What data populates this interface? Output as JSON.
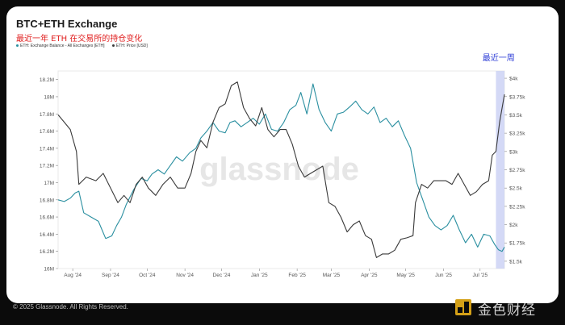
{
  "title": "BTC+ETH Exchange",
  "subtitle": "最近一年 ETH 在交易所的持仓变化",
  "legend": [
    {
      "label": "ETH: Exchange Balance - All Exchanges [ETH]",
      "color": "#2a8fa0"
    },
    {
      "label": "ETH: Price [USD]",
      "color": "#3a3a3a"
    }
  ],
  "highlight_label": "最近一周",
  "watermark": "glassnode",
  "footer": "© 2025 Glassnode. All Rights Reserved.",
  "brand": "金色财经",
  "colors": {
    "balance": "#2a8fa0",
    "price": "#3a3a3a",
    "highlight": "#cdd2f4",
    "highlight_text": "#2b3bd6"
  },
  "chart_data": {
    "type": "line",
    "title": "BTC+ETH Exchange",
    "grid": true,
    "legend_position": "top-left",
    "x_labels": [
      "Aug '24",
      "Sep '24",
      "Oct '24",
      "Nov '24",
      "Dec '24",
      "Jan '25",
      "Feb '25",
      "Mar '25",
      "Apr '25",
      "May '25",
      "Jun '25",
      "Jul '25"
    ],
    "y_left_ticks": [
      "16M",
      "16.2M",
      "16.4M",
      "16.6M",
      "16.8M",
      "17M",
      "17.2M",
      "17.4M",
      "17.6M",
      "17.8M",
      "18M",
      "18.2M"
    ],
    "y_left_lim": [
      16.0,
      18.3
    ],
    "y_right_ticks": [
      "$1.5k",
      "$1.75k",
      "$2k",
      "$2.25k",
      "$2.5k",
      "$2.75k",
      "$3k",
      "$3.25k",
      "$3.5k",
      "$3.75k",
      "$4k"
    ],
    "y_right_lim": [
      1.4,
      4.1
    ],
    "x_start": "2024-07-20",
    "x_end": "2025-07-21",
    "highlight_range": [
      "2025-07-14",
      "2025-07-21"
    ],
    "series": [
      {
        "name": "ETH: Exchange Balance - All Exchanges [ETH]",
        "axis": "left",
        "unit": "M ETH",
        "dates": [
          "2024-07-20",
          "2024-07-25",
          "2024-07-30",
          "2024-08-03",
          "2024-08-06",
          "2024-08-10",
          "2024-08-16",
          "2024-08-22",
          "2024-08-28",
          "2024-09-02",
          "2024-09-06",
          "2024-09-10",
          "2024-09-14",
          "2024-09-20",
          "2024-09-26",
          "2024-10-01",
          "2024-10-05",
          "2024-10-10",
          "2024-10-15",
          "2024-10-20",
          "2024-10-25",
          "2024-10-30",
          "2024-11-05",
          "2024-11-10",
          "2024-11-14",
          "2024-11-19",
          "2024-11-24",
          "2024-11-29",
          "2024-12-04",
          "2024-12-08",
          "2024-12-12",
          "2024-12-17",
          "2024-12-22",
          "2024-12-27",
          "2025-01-01",
          "2025-01-06",
          "2025-01-11",
          "2025-01-16",
          "2025-01-21",
          "2025-01-26",
          "2025-01-31",
          "2025-02-04",
          "2025-02-09",
          "2025-02-14",
          "2025-02-19",
          "2025-02-24",
          "2025-03-01",
          "2025-03-06",
          "2025-03-11",
          "2025-03-16",
          "2025-03-21",
          "2025-03-26",
          "2025-03-31",
          "2025-04-05",
          "2025-04-10",
          "2025-04-15",
          "2025-04-20",
          "2025-04-25",
          "2025-04-30",
          "2025-05-05",
          "2025-05-10",
          "2025-05-15",
          "2025-05-20",
          "2025-05-25",
          "2025-05-30",
          "2025-06-04",
          "2025-06-09",
          "2025-06-14",
          "2025-06-19",
          "2025-06-24",
          "2025-06-29",
          "2025-07-04",
          "2025-07-09",
          "2025-07-13",
          "2025-07-16",
          "2025-07-19",
          "2025-07-21"
        ],
        "values": [
          16.8,
          16.78,
          16.82,
          16.88,
          16.9,
          16.65,
          16.6,
          16.55,
          16.35,
          16.38,
          16.5,
          16.6,
          16.75,
          16.92,
          17.05,
          17.02,
          17.1,
          17.15,
          17.1,
          17.2,
          17.3,
          17.25,
          17.35,
          17.4,
          17.52,
          17.6,
          17.7,
          17.6,
          17.58,
          17.7,
          17.72,
          17.65,
          17.7,
          17.75,
          17.68,
          17.8,
          17.62,
          17.6,
          17.7,
          17.85,
          17.9,
          18.05,
          17.8,
          18.15,
          17.85,
          17.7,
          17.6,
          17.8,
          17.82,
          17.88,
          17.95,
          17.85,
          17.8,
          17.88,
          17.7,
          17.75,
          17.65,
          17.72,
          17.55,
          17.4,
          17.0,
          16.8,
          16.6,
          16.5,
          16.45,
          16.5,
          16.62,
          16.45,
          16.3,
          16.4,
          16.25,
          16.4,
          16.38,
          16.28,
          16.22,
          16.2,
          16.25
        ]
      },
      {
        "name": "ETH: Price [USD]",
        "axis": "right",
        "unit": "k USD",
        "dates": [
          "2024-07-20",
          "2024-07-25",
          "2024-07-30",
          "2024-08-04",
          "2024-08-06",
          "2024-08-12",
          "2024-08-20",
          "2024-08-26",
          "2024-09-01",
          "2024-09-07",
          "2024-09-12",
          "2024-09-17",
          "2024-09-22",
          "2024-09-27",
          "2024-10-02",
          "2024-10-08",
          "2024-10-14",
          "2024-10-20",
          "2024-10-26",
          "2024-11-01",
          "2024-11-06",
          "2024-11-10",
          "2024-11-14",
          "2024-11-19",
          "2024-11-24",
          "2024-11-29",
          "2024-12-04",
          "2024-12-09",
          "2024-12-14",
          "2024-12-19",
          "2024-12-24",
          "2024-12-29",
          "2025-01-03",
          "2025-01-08",
          "2025-01-13",
          "2025-01-18",
          "2025-01-23",
          "2025-01-28",
          "2025-02-02",
          "2025-02-07",
          "2025-02-12",
          "2025-02-17",
          "2025-02-22",
          "2025-02-27",
          "2025-03-04",
          "2025-03-09",
          "2025-03-14",
          "2025-03-19",
          "2025-03-24",
          "2025-03-29",
          "2025-04-03",
          "2025-04-07",
          "2025-04-12",
          "2025-04-17",
          "2025-04-22",
          "2025-04-27",
          "2025-05-02",
          "2025-05-07",
          "2025-05-09",
          "2025-05-14",
          "2025-05-19",
          "2025-05-24",
          "2025-05-29",
          "2025-06-03",
          "2025-06-08",
          "2025-06-13",
          "2025-06-18",
          "2025-06-23",
          "2025-06-28",
          "2025-07-03",
          "2025-07-08",
          "2025-07-11",
          "2025-07-14",
          "2025-07-17",
          "2025-07-21"
        ],
        "values": [
          3.5,
          3.4,
          3.3,
          3.0,
          2.55,
          2.65,
          2.6,
          2.7,
          2.5,
          2.3,
          2.4,
          2.3,
          2.55,
          2.65,
          2.5,
          2.4,
          2.55,
          2.65,
          2.5,
          2.5,
          2.7,
          3.0,
          3.15,
          3.05,
          3.4,
          3.6,
          3.65,
          3.9,
          3.95,
          3.6,
          3.45,
          3.35,
          3.6,
          3.3,
          3.2,
          3.3,
          3.3,
          3.1,
          2.8,
          2.65,
          2.7,
          2.75,
          2.8,
          2.3,
          2.25,
          2.1,
          1.9,
          2.0,
          2.05,
          1.85,
          1.8,
          1.55,
          1.6,
          1.6,
          1.65,
          1.8,
          1.82,
          1.85,
          2.3,
          2.55,
          2.5,
          2.6,
          2.6,
          2.6,
          2.55,
          2.7,
          2.55,
          2.4,
          2.45,
          2.55,
          2.6,
          2.95,
          3.0,
          3.4,
          3.78
        ]
      }
    ]
  }
}
